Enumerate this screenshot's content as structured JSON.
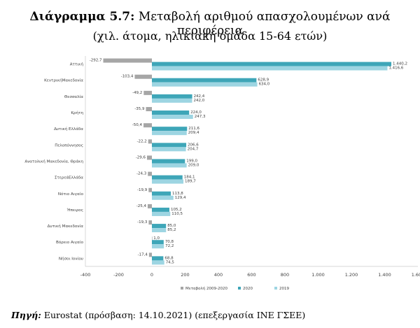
{
  "title": {
    "label": "Διάγραμμα 5.7:",
    "text": "Μεταβολή αριθμού απασχολουμένων ανά περιφέρεια",
    "subtitle": "(χιλ. άτομα, ηλικιακή ομάδα 15-64 ετών)"
  },
  "source": {
    "label": "Πηγή:",
    "text": " Eurostat (πρόσβαση: 14.10.2021) (επεξεργασία ΙΝΕ ΓΣΕΕ)"
  },
  "colors": {
    "change": "#a6a6a6",
    "y2020": "#3ea6b8",
    "y2019": "#9dd5e2"
  },
  "chart_data": {
    "type": "bar",
    "orientation": "horizontal",
    "categories": [
      "Αττική",
      "ΚεντρικήΜακεδονία",
      "Θεσσαλία",
      "Κρήτη",
      "Δυτική Ελλάδα",
      "Πελοπόννησος",
      "Ανατολική Μακεδονία, Θράκη",
      "ΣτερεάΕλλάδα",
      "Νότιο Αιγαίο",
      "Ήπειρος",
      "Δυτική Μακεδονία",
      "Βόρειο Αιγαίο",
      "Νήσοι Ιονίου"
    ],
    "series": [
      {
        "name": "Μεταβολή 2009-2020",
        "values": [
          -292.7,
          -103.4,
          -49.2,
          -35.9,
          -50.4,
          -22.2,
          -29.6,
          -24.3,
          -19.9,
          -25.4,
          -19.3,
          1.0,
          -17.4
        ],
        "labels": [
          "-292,7",
          "-103,4",
          "-49,2",
          "-35,9",
          "-50,4",
          "-22,2",
          "-29,6",
          "-24,3",
          "-19,9",
          "-25,4",
          "-19,3",
          "1,0",
          "-17,4"
        ]
      },
      {
        "name": "2020",
        "values": [
          1440.2,
          628.9,
          242.4,
          224.0,
          211.6,
          206.6,
          199.0,
          184.1,
          113.8,
          105.2,
          85.0,
          70.8,
          68.8
        ],
        "labels": [
          "1.440,2",
          "628,9",
          "242,4",
          "224,0",
          "211,6",
          "206,6",
          "199,0",
          "184,1",
          "113,8",
          "105,2",
          "85,0",
          "70,8",
          "68,8"
        ]
      },
      {
        "name": "2019",
        "values": [
          1416.6,
          634.0,
          242.0,
          247.3,
          209.4,
          204.7,
          209.0,
          189.7,
          129.4,
          110.5,
          85.2,
          72.2,
          74.5
        ],
        "labels": [
          "1.416,6",
          "634,0",
          "242,0",
          "247,3",
          "209,4",
          "204,7",
          "209,0",
          "189,7",
          "129,4",
          "110,5",
          "85,2",
          "72,2",
          "74,5"
        ]
      }
    ],
    "xlim": [
      -400,
      1600
    ],
    "xticks": [
      -400,
      -200,
      0,
      200,
      400,
      600,
      800,
      1000,
      1200,
      1400,
      1600
    ],
    "xtick_labels": [
      "-400",
      "-200",
      "0",
      "200",
      "400",
      "600",
      "800",
      "1.000",
      "1.200",
      "1.400",
      "1.600"
    ],
    "legend_position": "bottom",
    "grid": false
  }
}
